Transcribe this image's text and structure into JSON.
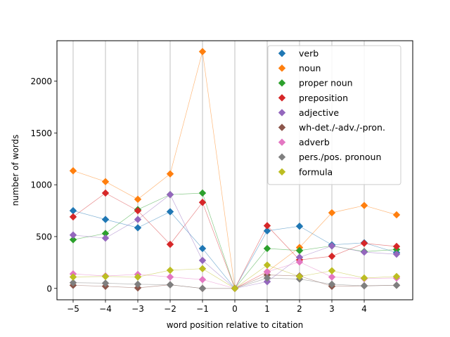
{
  "chart_data": {
    "type": "scatter",
    "title": "",
    "xlabel": "word position relative to citation",
    "ylabel": "number of words",
    "x": [
      -5,
      -4,
      -3,
      -2,
      -1,
      0,
      1,
      2,
      3,
      4,
      5
    ],
    "x_ticks": [
      -5,
      -4,
      -3,
      -2,
      -1,
      0,
      1,
      2,
      3,
      4
    ],
    "x_tick_labels": [
      "−5",
      "−4",
      "−3",
      "−2",
      "−1",
      "0",
      "1",
      "2",
      "3",
      "4"
    ],
    "y_ticks": [
      0,
      500,
      1000,
      1500,
      2000
    ],
    "y_tick_labels": [
      "0",
      "500",
      "1000",
      "1500",
      "2000"
    ],
    "xlim": [
      -5.5,
      5.5
    ],
    "ylim": [
      -110,
      2390
    ],
    "grid": "vertical lines at x ticks",
    "legend_position": "upper-right",
    "series": [
      {
        "name": "verb",
        "color": "#1f77b4",
        "values": [
          750,
          665,
          585,
          740,
          385,
          0,
          555,
          600,
          420,
          440,
          345
        ]
      },
      {
        "name": "noun",
        "color": "#ff7f0e",
        "values": [
          1135,
          1030,
          860,
          1105,
          2285,
          0,
          160,
          395,
          730,
          800,
          710
        ]
      },
      {
        "name": "proper noun",
        "color": "#2ca02c",
        "values": [
          470,
          530,
          760,
          905,
          920,
          0,
          385,
          365,
          410,
          355,
          375
        ]
      },
      {
        "name": "preposition",
        "color": "#d62728",
        "values": [
          690,
          920,
          750,
          425,
          830,
          0,
          605,
          275,
          310,
          435,
          405
        ]
      },
      {
        "name": "adjective",
        "color": "#9467bd",
        "values": [
          515,
          485,
          665,
          905,
          270,
          0,
          65,
          300,
          410,
          350,
          330
        ]
      },
      {
        "name": "wh-det./-adv./-pron.",
        "color": "#8c564b",
        "values": [
          30,
          20,
          5,
          35,
          0,
          0,
          130,
          120,
          20,
          25,
          30
        ]
      },
      {
        "name": "adverb",
        "color": "#e377c2",
        "values": [
          140,
          120,
          135,
          110,
          85,
          0,
          160,
          255,
          110,
          95,
          100
        ]
      },
      {
        "name": "pers./pos. pronoun",
        "color": "#7f7f7f",
        "values": [
          55,
          50,
          40,
          35,
          0,
          0,
          100,
          90,
          40,
          25,
          30
        ]
      },
      {
        "name": "formula",
        "color": "#bcbd22",
        "values": [
          110,
          115,
          110,
          175,
          190,
          0,
          225,
          115,
          170,
          100,
          115
        ]
      }
    ]
  }
}
